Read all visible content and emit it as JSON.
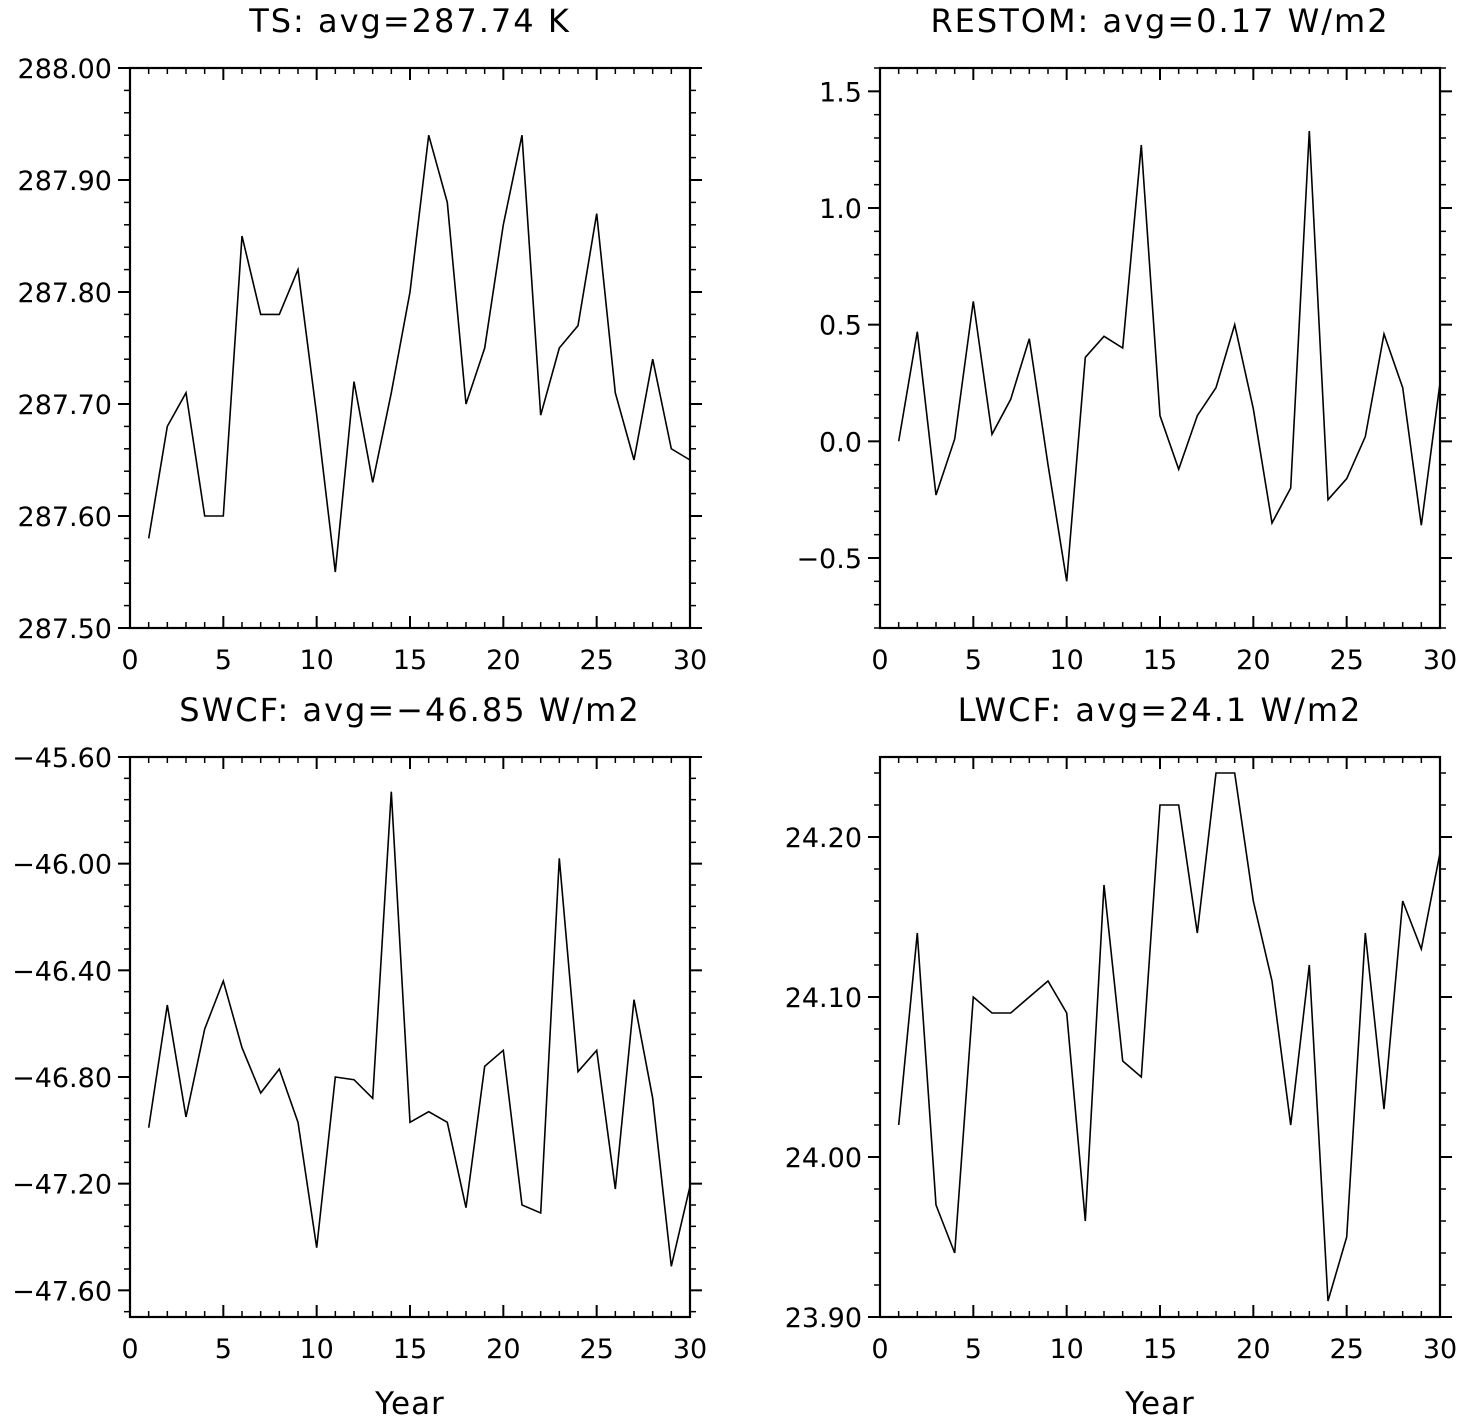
{
  "chart_data": [
    {
      "type": "line",
      "title": "TS: avg=287.74 K",
      "xlabel": "",
      "ylabel": "",
      "xlim": [
        0,
        30
      ],
      "ylim": [
        287.5,
        288.0
      ],
      "xticks": [
        "0",
        "5",
        "10",
        "15",
        "20",
        "25",
        "30"
      ],
      "yticks": [
        "287.50",
        "287.60",
        "287.70",
        "287.80",
        "287.90",
        "288.00"
      ],
      "x": [
        1,
        2,
        3,
        4,
        5,
        6,
        7,
        8,
        9,
        10,
        11,
        12,
        13,
        14,
        15,
        16,
        17,
        18,
        19,
        20,
        21,
        22,
        23,
        24,
        25,
        26,
        27,
        28,
        29,
        30
      ],
      "series": [
        {
          "values": [
            287.58,
            287.68,
            287.71,
            287.6,
            287.6,
            287.85,
            287.78,
            287.78,
            287.82,
            287.69,
            287.55,
            287.72,
            287.63,
            287.71,
            287.8,
            287.94,
            287.88,
            287.7,
            287.75,
            287.86,
            287.94,
            287.69,
            287.75,
            287.77,
            287.87,
            287.71,
            287.65,
            287.74,
            287.66,
            287.65
          ]
        }
      ],
      "grid": false
    },
    {
      "type": "line",
      "title": "RESTOM: avg=0.17 W/m2",
      "xlabel": "",
      "ylabel": "",
      "xlim": [
        0,
        30
      ],
      "ylim": [
        -0.8,
        1.6
      ],
      "xticks": [
        "0",
        "5",
        "10",
        "15",
        "20",
        "25",
        "30"
      ],
      "yticks": [
        "−0.5",
        "0.0",
        "0.5",
        "1.0",
        "1.5"
      ],
      "x": [
        1,
        2,
        3,
        4,
        5,
        6,
        7,
        8,
        9,
        10,
        11,
        12,
        13,
        14,
        15,
        16,
        17,
        18,
        19,
        20,
        21,
        22,
        23,
        24,
        25,
        26,
        27,
        28,
        29,
        30
      ],
      "series": [
        {
          "values": [
            0.0,
            0.47,
            -0.23,
            0.01,
            0.6,
            0.03,
            0.18,
            0.44,
            -0.1,
            -0.6,
            0.36,
            0.45,
            0.4,
            1.27,
            0.11,
            -0.12,
            0.11,
            0.23,
            0.5,
            0.14,
            -0.35,
            -0.2,
            1.33,
            -0.25,
            -0.16,
            0.02,
            0.46,
            0.23,
            -0.36,
            0.25
          ]
        }
      ],
      "grid": false
    },
    {
      "type": "line",
      "title": "SWCF: avg=−46.85 W/m2",
      "xlabel": "Year",
      "ylabel": "",
      "xlim": [
        0,
        30
      ],
      "ylim": [
        -47.7,
        -45.6
      ],
      "xticks": [
        "0",
        "5",
        "10",
        "15",
        "20",
        "25",
        "30"
      ],
      "yticks": [
        "−45.60",
        "−46.00",
        "−46.40",
        "−46.80",
        "−47.20",
        "−47.60"
      ],
      "x": [
        1,
        2,
        3,
        4,
        5,
        6,
        7,
        8,
        9,
        10,
        11,
        12,
        13,
        14,
        15,
        16,
        17,
        18,
        19,
        20,
        21,
        22,
        23,
        24,
        25,
        26,
        27,
        28,
        29,
        30
      ],
      "series": [
        {
          "values": [
            -46.99,
            -46.53,
            -46.95,
            -46.62,
            -46.44,
            -46.69,
            -46.86,
            -46.77,
            -46.97,
            -47.44,
            -46.8,
            -46.81,
            -46.88,
            -45.73,
            -46.97,
            -46.93,
            -46.97,
            -47.29,
            -46.76,
            -46.7,
            -47.28,
            -47.31,
            -45.98,
            -46.78,
            -46.7,
            -47.22,
            -46.51,
            -46.88,
            -47.51,
            -47.21
          ]
        }
      ],
      "grid": false
    },
    {
      "type": "line",
      "title": "LWCF: avg=24.1 W/m2",
      "xlabel": "Year",
      "ylabel": "",
      "xlim": [
        0,
        30
      ],
      "ylim": [
        23.9,
        24.25
      ],
      "xticks": [
        "0",
        "5",
        "10",
        "15",
        "20",
        "25",
        "30"
      ],
      "yticks": [
        "23.90",
        "24.00",
        "24.10",
        "24.20"
      ],
      "x": [
        1,
        2,
        3,
        4,
        5,
        6,
        7,
        8,
        9,
        10,
        11,
        12,
        13,
        14,
        15,
        16,
        17,
        18,
        19,
        20,
        21,
        22,
        23,
        24,
        25,
        26,
        27,
        28,
        29,
        30
      ],
      "series": [
        {
          "values": [
            24.02,
            24.14,
            23.97,
            23.94,
            24.1,
            24.09,
            24.09,
            24.1,
            24.11,
            24.09,
            23.96,
            24.17,
            24.06,
            24.05,
            24.22,
            24.22,
            24.14,
            24.24,
            24.24,
            24.16,
            24.11,
            24.02,
            24.12,
            23.91,
            23.95,
            24.14,
            24.03,
            24.16,
            24.13,
            24.19
          ]
        }
      ],
      "grid": false
    }
  ]
}
